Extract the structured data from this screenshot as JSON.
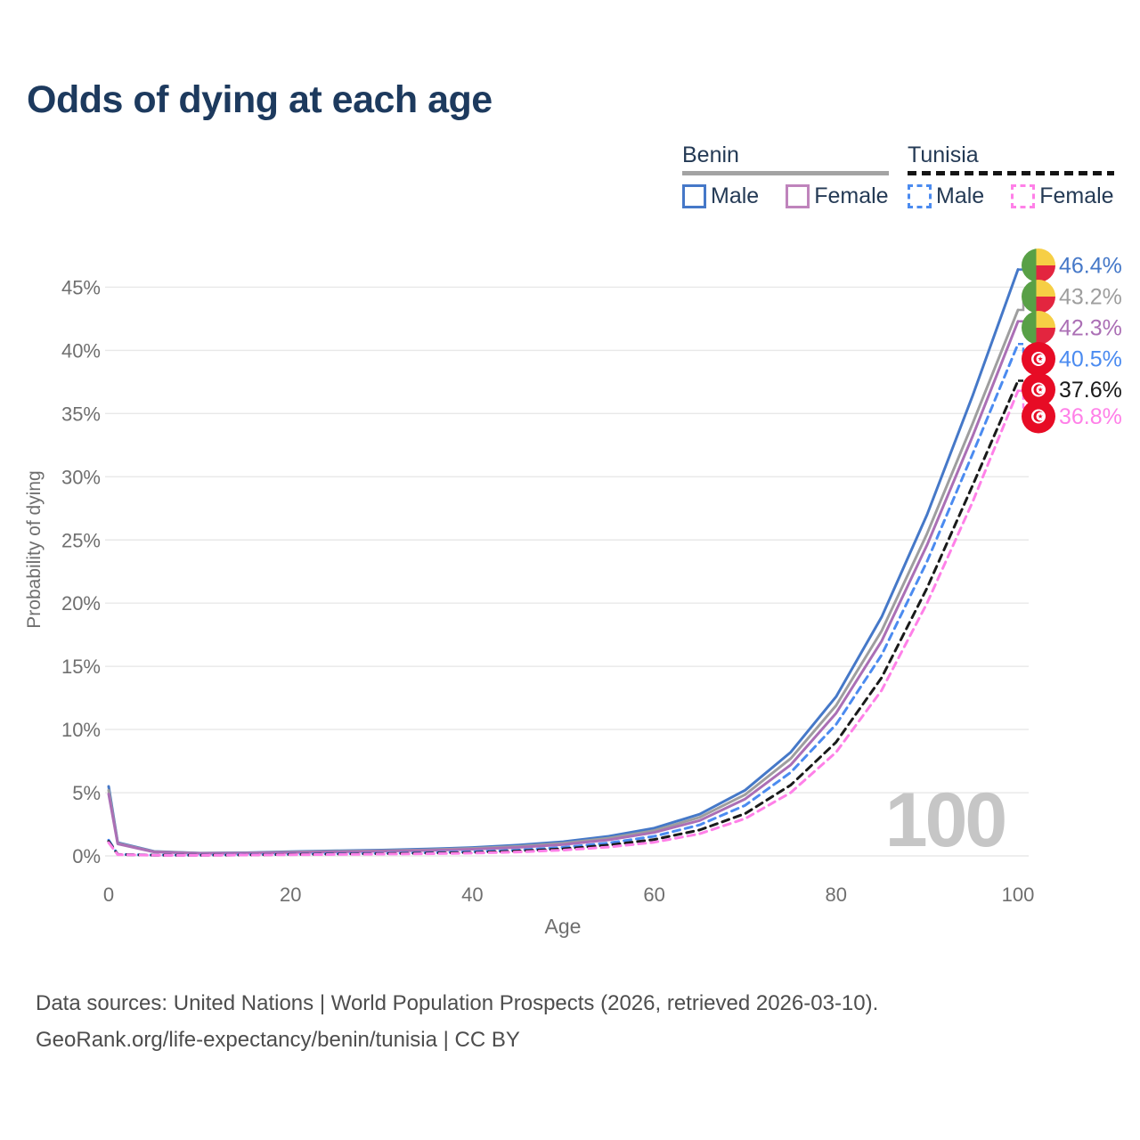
{
  "page": {
    "title": "Odds of dying at each age"
  },
  "legend": {
    "groups": [
      {
        "name": "Benin",
        "line_style": "solid",
        "line_color": "#9e9e9e",
        "items": [
          {
            "label": "Male",
            "color": "#4578c8"
          },
          {
            "label": "Female",
            "color": "#bf84bc"
          }
        ]
      },
      {
        "name": "Tunisia",
        "line_style": "dashed",
        "line_color": "#1a1a1a",
        "items": [
          {
            "label": "Male",
            "color": "#4b8bf0"
          },
          {
            "label": "Female",
            "color": "#ff80e8"
          }
        ]
      }
    ]
  },
  "chart_data": {
    "type": "line",
    "title": "Odds of dying at each age",
    "xlabel": "Age",
    "ylabel": "Probability of dying",
    "units": "percent",
    "xlim": [
      0,
      100
    ],
    "ylim": [
      0,
      47
    ],
    "x_ticks": [
      0,
      20,
      40,
      60,
      80,
      100
    ],
    "y_ticks": [
      "0%",
      "5%",
      "10%",
      "15%",
      "20%",
      "25%",
      "30%",
      "35%",
      "40%",
      "45%"
    ],
    "grid": "horizontal",
    "legend_position": "top-right",
    "hovered_age_watermark": "100",
    "ages": [
      0,
      1,
      5,
      10,
      15,
      20,
      25,
      30,
      35,
      40,
      45,
      50,
      55,
      60,
      65,
      70,
      75,
      80,
      85,
      90,
      95,
      100
    ],
    "series": [
      {
        "key": "benin_male",
        "country": "Benin",
        "sex": "Male",
        "color": "#4578c8",
        "dash": false,
        "end_label": "46.4%",
        "values": [
          5.5,
          1.05,
          0.35,
          0.22,
          0.25,
          0.33,
          0.4,
          0.46,
          0.54,
          0.66,
          0.85,
          1.12,
          1.55,
          2.2,
          3.3,
          5.2,
          8.2,
          12.6,
          18.9,
          27.0,
          36.4,
          46.4
        ]
      },
      {
        "key": "benin_both",
        "country": "Benin",
        "sex": "Both",
        "color": "#9e9e9e",
        "dash": false,
        "end_label": "43.2%",
        "values": [
          5.2,
          1.0,
          0.33,
          0.21,
          0.23,
          0.3,
          0.36,
          0.41,
          0.48,
          0.59,
          0.75,
          1.0,
          1.4,
          2.0,
          3.05,
          4.85,
          7.7,
          11.9,
          17.8,
          25.5,
          34.2,
          43.2
        ]
      },
      {
        "key": "benin_female",
        "country": "Benin",
        "sex": "Female",
        "color": "#ab6fb5",
        "dash": false,
        "end_label": "42.3%",
        "values": [
          4.9,
          0.95,
          0.31,
          0.2,
          0.21,
          0.27,
          0.32,
          0.37,
          0.43,
          0.53,
          0.67,
          0.9,
          1.27,
          1.85,
          2.8,
          4.5,
          7.2,
          11.3,
          17.0,
          24.6,
          33.2,
          42.3
        ]
      },
      {
        "key": "tunisia_male",
        "country": "Tunisia",
        "sex": "Male",
        "color": "#4b8bf0",
        "dash": true,
        "end_label": "40.5%",
        "values": [
          1.25,
          0.12,
          0.06,
          0.06,
          0.09,
          0.13,
          0.17,
          0.2,
          0.25,
          0.33,
          0.46,
          0.68,
          1.02,
          1.55,
          2.45,
          4.0,
          6.6,
          10.4,
          15.9,
          23.3,
          31.8,
          40.5
        ]
      },
      {
        "key": "tunisia_both",
        "country": "Tunisia",
        "sex": "Both",
        "color": "#1a1a1a",
        "dash": true,
        "end_label": "37.6%",
        "values": [
          1.15,
          0.11,
          0.055,
          0.05,
          0.08,
          0.11,
          0.14,
          0.17,
          0.21,
          0.27,
          0.38,
          0.56,
          0.85,
          1.3,
          2.05,
          3.35,
          5.6,
          9.0,
          14.1,
          21.2,
          29.3,
          37.6
        ]
      },
      {
        "key": "tunisia_female",
        "country": "Tunisia",
        "sex": "Female",
        "color": "#ff80e8",
        "dash": true,
        "end_label": "36.8%",
        "values": [
          1.05,
          0.1,
          0.05,
          0.045,
          0.07,
          0.09,
          0.11,
          0.14,
          0.17,
          0.22,
          0.31,
          0.46,
          0.7,
          1.08,
          1.75,
          2.95,
          5.0,
          8.2,
          13.1,
          20.0,
          28.0,
          36.8
        ]
      }
    ],
    "end_labels": [
      {
        "text": "46.4%",
        "flag": "benin",
        "color": "#4578c8"
      },
      {
        "text": "43.2%",
        "flag": "benin",
        "color": "#9e9e9e"
      },
      {
        "text": "42.3%",
        "flag": "benin",
        "color": "#ab6fb5"
      },
      {
        "text": "40.5%",
        "flag": "tunisia",
        "color": "#4b8bf0"
      },
      {
        "text": "37.6%",
        "flag": "tunisia",
        "color": "#1a1a1a"
      },
      {
        "text": "36.8%",
        "flag": "tunisia",
        "color": "#ff80e8"
      }
    ]
  },
  "icons": {
    "benin_flag_colors": {
      "green": "#58a046",
      "yellow": "#f6cf45",
      "red": "#e3253f"
    },
    "tunisia_flag_colors": {
      "red": "#e70c25",
      "white": "#ffffff"
    }
  },
  "footer": {
    "line1": "Data sources: United Nations | World Population Prospects (2026, retrieved 2026-03-10).",
    "line2": "GeoRank.org/life-expectancy/benin/tunisia | CC BY"
  }
}
